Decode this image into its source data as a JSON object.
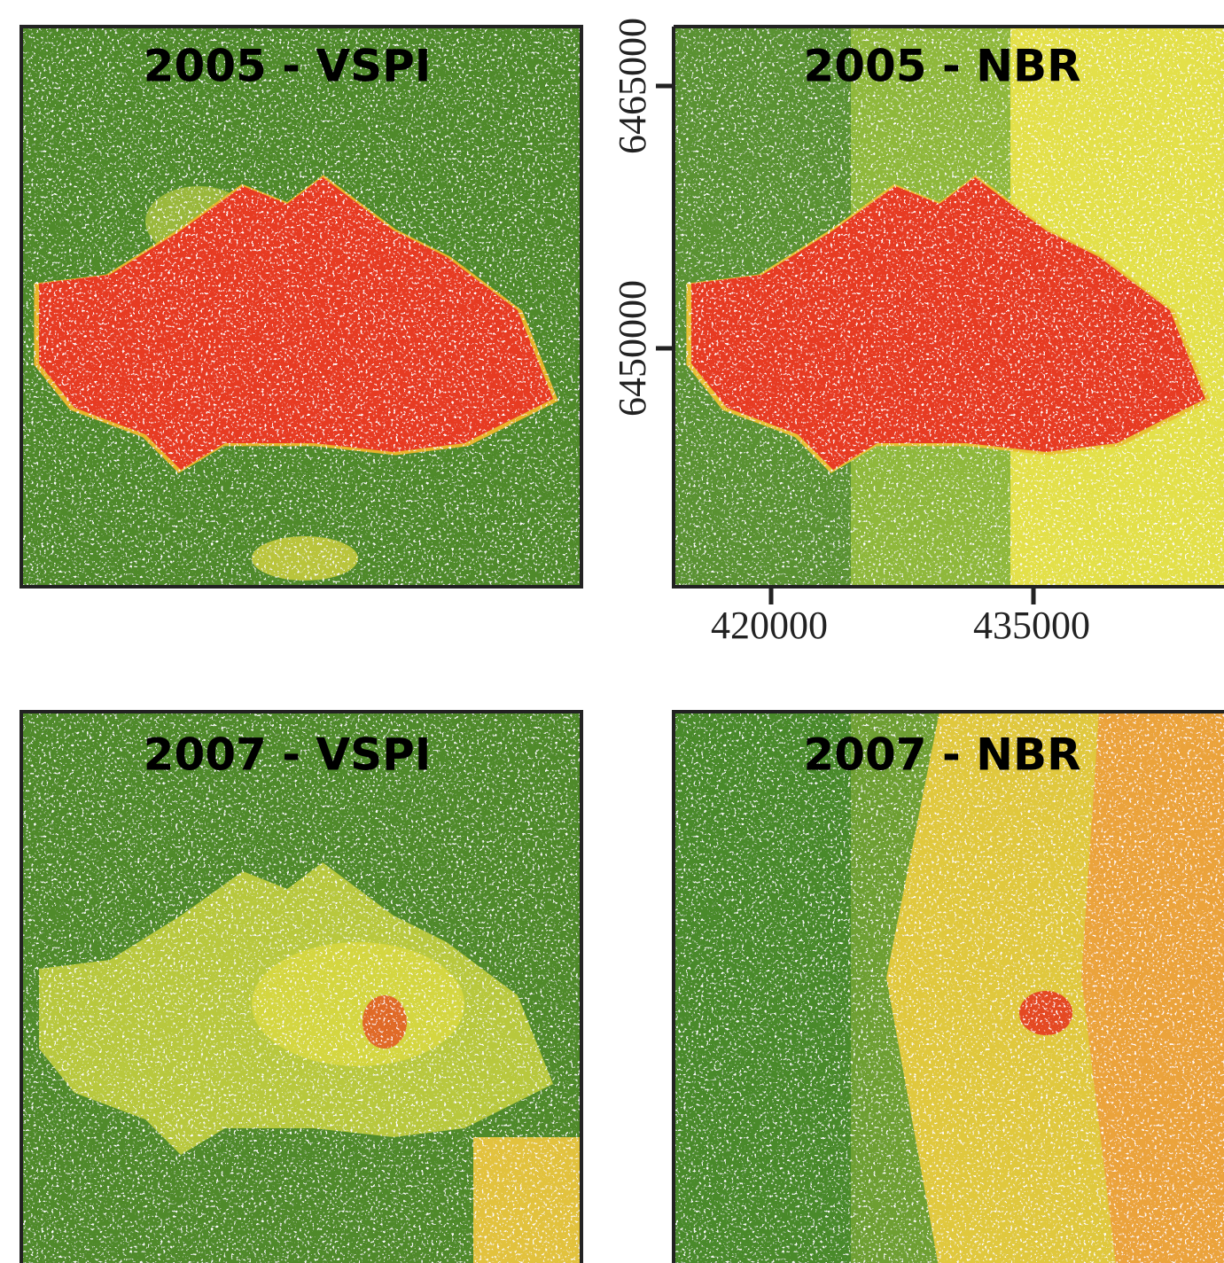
{
  "panels": [
    {
      "title": "2005 - VSPI"
    },
    {
      "title": "2005 - NBR"
    },
    {
      "title": "2007 - VSPI"
    },
    {
      "title": "2007 - NBR"
    }
  ],
  "axes": {
    "y_ticks": [
      "6465000",
      "6450000"
    ],
    "x_ticks": [
      "420000",
      "435000"
    ]
  }
}
